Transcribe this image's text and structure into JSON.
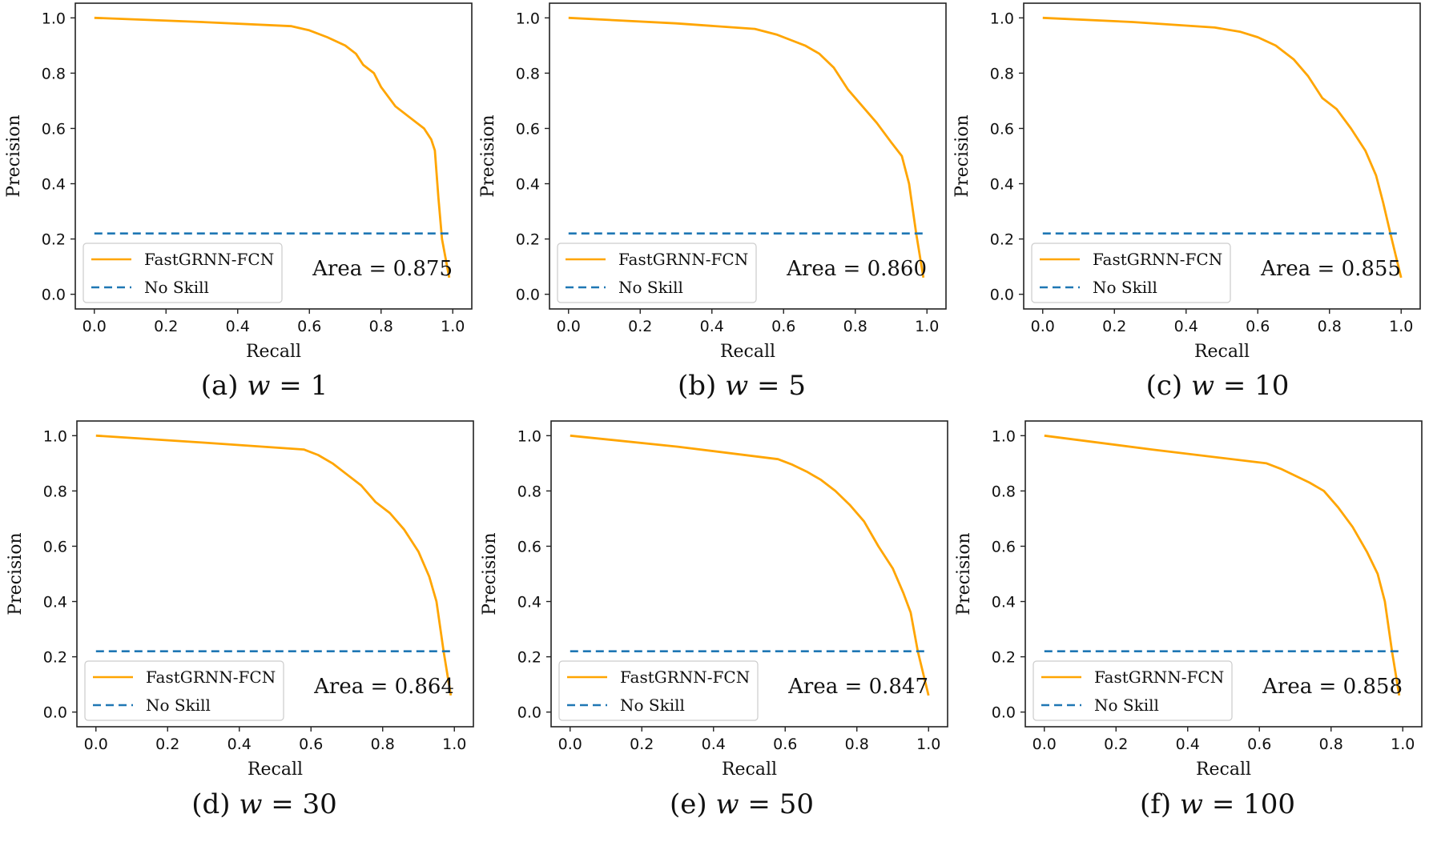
{
  "figure": {
    "panels": [
      {
        "caption_prefix": "(a) ",
        "caption_var": "w",
        "caption_suffix": " = 1",
        "area_label": "Area = 0.875"
      },
      {
        "caption_prefix": "(b) ",
        "caption_var": "w",
        "caption_suffix": " = 5",
        "area_label": "Area = 0.860"
      },
      {
        "caption_prefix": "(c) ",
        "caption_var": "w",
        "caption_suffix": " = 10",
        "area_label": "Area = 0.855"
      },
      {
        "caption_prefix": "(d) ",
        "caption_var": "w",
        "caption_suffix": " = 30",
        "area_label": "Area = 0.864"
      },
      {
        "caption_prefix": "(e) ",
        "caption_var": "w",
        "caption_suffix": " = 50",
        "area_label": "Area = 0.847"
      },
      {
        "caption_prefix": "(f) ",
        "caption_var": "w",
        "caption_suffix": " = 100",
        "area_label": "Area = 0.858"
      }
    ]
  },
  "colors": {
    "model": "#FFA500",
    "no_skill": "#1f77b4"
  },
  "chart_data": [
    {
      "type": "line",
      "xlabel": "Recall",
      "ylabel": "Precision",
      "xlim": [
        0.0,
        1.0
      ],
      "ylim": [
        0.0,
        1.0
      ],
      "xticks": [
        "0.0",
        "0.2",
        "0.4",
        "0.6",
        "0.8",
        "1.0"
      ],
      "yticks": [
        "0.0",
        "0.2",
        "0.4",
        "0.6",
        "0.8",
        "1.0"
      ],
      "legend": "lower-left",
      "series": [
        {
          "name": "FastGRNN-FCN",
          "style": "solid",
          "x": [
            0.0,
            0.3,
            0.55,
            0.6,
            0.65,
            0.7,
            0.73,
            0.75,
            0.78,
            0.8,
            0.84,
            0.88,
            0.92,
            0.94,
            0.95,
            0.96,
            0.97,
            0.99
          ],
          "y": [
            1.0,
            0.985,
            0.97,
            0.955,
            0.93,
            0.9,
            0.87,
            0.83,
            0.8,
            0.75,
            0.68,
            0.64,
            0.6,
            0.56,
            0.52,
            0.35,
            0.2,
            0.06
          ]
        },
        {
          "name": "No Skill",
          "style": "dashed",
          "x": [
            0.0,
            1.0
          ],
          "y": [
            0.22,
            0.22
          ]
        }
      ],
      "annotation": "Area = 0.875"
    },
    {
      "type": "line",
      "xlabel": "Recall",
      "ylabel": "Precision",
      "xlim": [
        0.0,
        1.0
      ],
      "ylim": [
        0.0,
        1.0
      ],
      "xticks": [
        "0.0",
        "0.2",
        "0.4",
        "0.6",
        "0.8",
        "1.0"
      ],
      "yticks": [
        "0.0",
        "0.2",
        "0.4",
        "0.6",
        "0.8",
        "1.0"
      ],
      "legend": "lower-left",
      "series": [
        {
          "name": "FastGRNN-FCN",
          "style": "solid",
          "x": [
            0.0,
            0.3,
            0.52,
            0.58,
            0.62,
            0.66,
            0.7,
            0.74,
            0.78,
            0.82,
            0.86,
            0.9,
            0.93,
            0.95,
            0.97,
            0.99
          ],
          "y": [
            1.0,
            0.98,
            0.96,
            0.94,
            0.92,
            0.9,
            0.87,
            0.82,
            0.74,
            0.68,
            0.62,
            0.55,
            0.5,
            0.4,
            0.22,
            0.06
          ]
        },
        {
          "name": "No Skill",
          "style": "dashed",
          "x": [
            0.0,
            1.0
          ],
          "y": [
            0.22,
            0.22
          ]
        }
      ],
      "annotation": "Area = 0.860"
    },
    {
      "type": "line",
      "xlabel": "Recall",
      "ylabel": "Precision",
      "xlim": [
        0.0,
        1.0
      ],
      "ylim": [
        0.0,
        1.0
      ],
      "xticks": [
        "0.0",
        "0.2",
        "0.4",
        "0.6",
        "0.8",
        "1.0"
      ],
      "yticks": [
        "0.0",
        "0.2",
        "0.4",
        "0.6",
        "0.8",
        "1.0"
      ],
      "legend": "lower-left",
      "series": [
        {
          "name": "FastGRNN-FCN",
          "style": "solid",
          "x": [
            0.0,
            0.25,
            0.48,
            0.55,
            0.6,
            0.65,
            0.7,
            0.74,
            0.78,
            0.82,
            0.86,
            0.9,
            0.93,
            0.95,
            0.97,
            1.0
          ],
          "y": [
            1.0,
            0.985,
            0.965,
            0.95,
            0.93,
            0.9,
            0.85,
            0.79,
            0.71,
            0.67,
            0.6,
            0.52,
            0.43,
            0.33,
            0.22,
            0.06
          ]
        },
        {
          "name": "No Skill",
          "style": "dashed",
          "x": [
            0.0,
            1.0
          ],
          "y": [
            0.22,
            0.22
          ]
        }
      ],
      "annotation": "Area = 0.855"
    },
    {
      "type": "line",
      "xlabel": "Recall",
      "ylabel": "Precision",
      "xlim": [
        0.0,
        1.0
      ],
      "ylim": [
        0.0,
        1.0
      ],
      "xticks": [
        "0.0",
        "0.2",
        "0.4",
        "0.6",
        "0.8",
        "1.0"
      ],
      "yticks": [
        "0.0",
        "0.2",
        "0.4",
        "0.6",
        "0.8",
        "1.0"
      ],
      "legend": "lower-left",
      "series": [
        {
          "name": "FastGRNN-FCN",
          "style": "solid",
          "x": [
            0.0,
            0.3,
            0.58,
            0.62,
            0.66,
            0.7,
            0.74,
            0.78,
            0.82,
            0.86,
            0.9,
            0.93,
            0.95,
            0.97,
            0.99
          ],
          "y": [
            1.0,
            0.975,
            0.95,
            0.93,
            0.9,
            0.86,
            0.82,
            0.76,
            0.72,
            0.66,
            0.58,
            0.49,
            0.4,
            0.22,
            0.06
          ]
        },
        {
          "name": "No Skill",
          "style": "dashed",
          "x": [
            0.0,
            1.0
          ],
          "y": [
            0.22,
            0.22
          ]
        }
      ],
      "annotation": "Area = 0.864"
    },
    {
      "type": "line",
      "xlabel": "Recall",
      "ylabel": "Precision",
      "xlim": [
        0.0,
        1.0
      ],
      "ylim": [
        0.0,
        1.0
      ],
      "xticks": [
        "0.0",
        "0.2",
        "0.4",
        "0.6",
        "0.8",
        "1.0"
      ],
      "yticks": [
        "0.0",
        "0.2",
        "0.4",
        "0.6",
        "0.8",
        "1.0"
      ],
      "legend": "lower-left",
      "series": [
        {
          "name": "FastGRNN-FCN",
          "style": "solid",
          "x": [
            0.0,
            0.3,
            0.58,
            0.62,
            0.66,
            0.7,
            0.74,
            0.78,
            0.82,
            0.86,
            0.9,
            0.93,
            0.95,
            0.97,
            1.0
          ],
          "y": [
            1.0,
            0.96,
            0.915,
            0.895,
            0.87,
            0.84,
            0.8,
            0.75,
            0.69,
            0.6,
            0.52,
            0.43,
            0.36,
            0.22,
            0.06
          ]
        },
        {
          "name": "No Skill",
          "style": "dashed",
          "x": [
            0.0,
            1.0
          ],
          "y": [
            0.22,
            0.22
          ]
        }
      ],
      "annotation": "Area = 0.847"
    },
    {
      "type": "line",
      "xlabel": "Recall",
      "ylabel": "Precision",
      "xlim": [
        0.0,
        1.0
      ],
      "ylim": [
        0.0,
        1.0
      ],
      "xticks": [
        "0.0",
        "0.2",
        "0.4",
        "0.6",
        "0.8",
        "1.0"
      ],
      "yticks": [
        "0.0",
        "0.2",
        "0.4",
        "0.6",
        "0.8",
        "1.0"
      ],
      "legend": "lower-left",
      "series": [
        {
          "name": "FastGRNN-FCN",
          "style": "solid",
          "x": [
            0.0,
            0.3,
            0.62,
            0.66,
            0.7,
            0.74,
            0.78,
            0.82,
            0.86,
            0.9,
            0.93,
            0.95,
            0.97,
            0.99
          ],
          "y": [
            1.0,
            0.95,
            0.9,
            0.88,
            0.855,
            0.83,
            0.8,
            0.74,
            0.67,
            0.58,
            0.5,
            0.4,
            0.22,
            0.06
          ]
        },
        {
          "name": "No Skill",
          "style": "dashed",
          "x": [
            0.0,
            1.0
          ],
          "y": [
            0.22,
            0.22
          ]
        }
      ],
      "annotation": "Area = 0.858"
    }
  ]
}
